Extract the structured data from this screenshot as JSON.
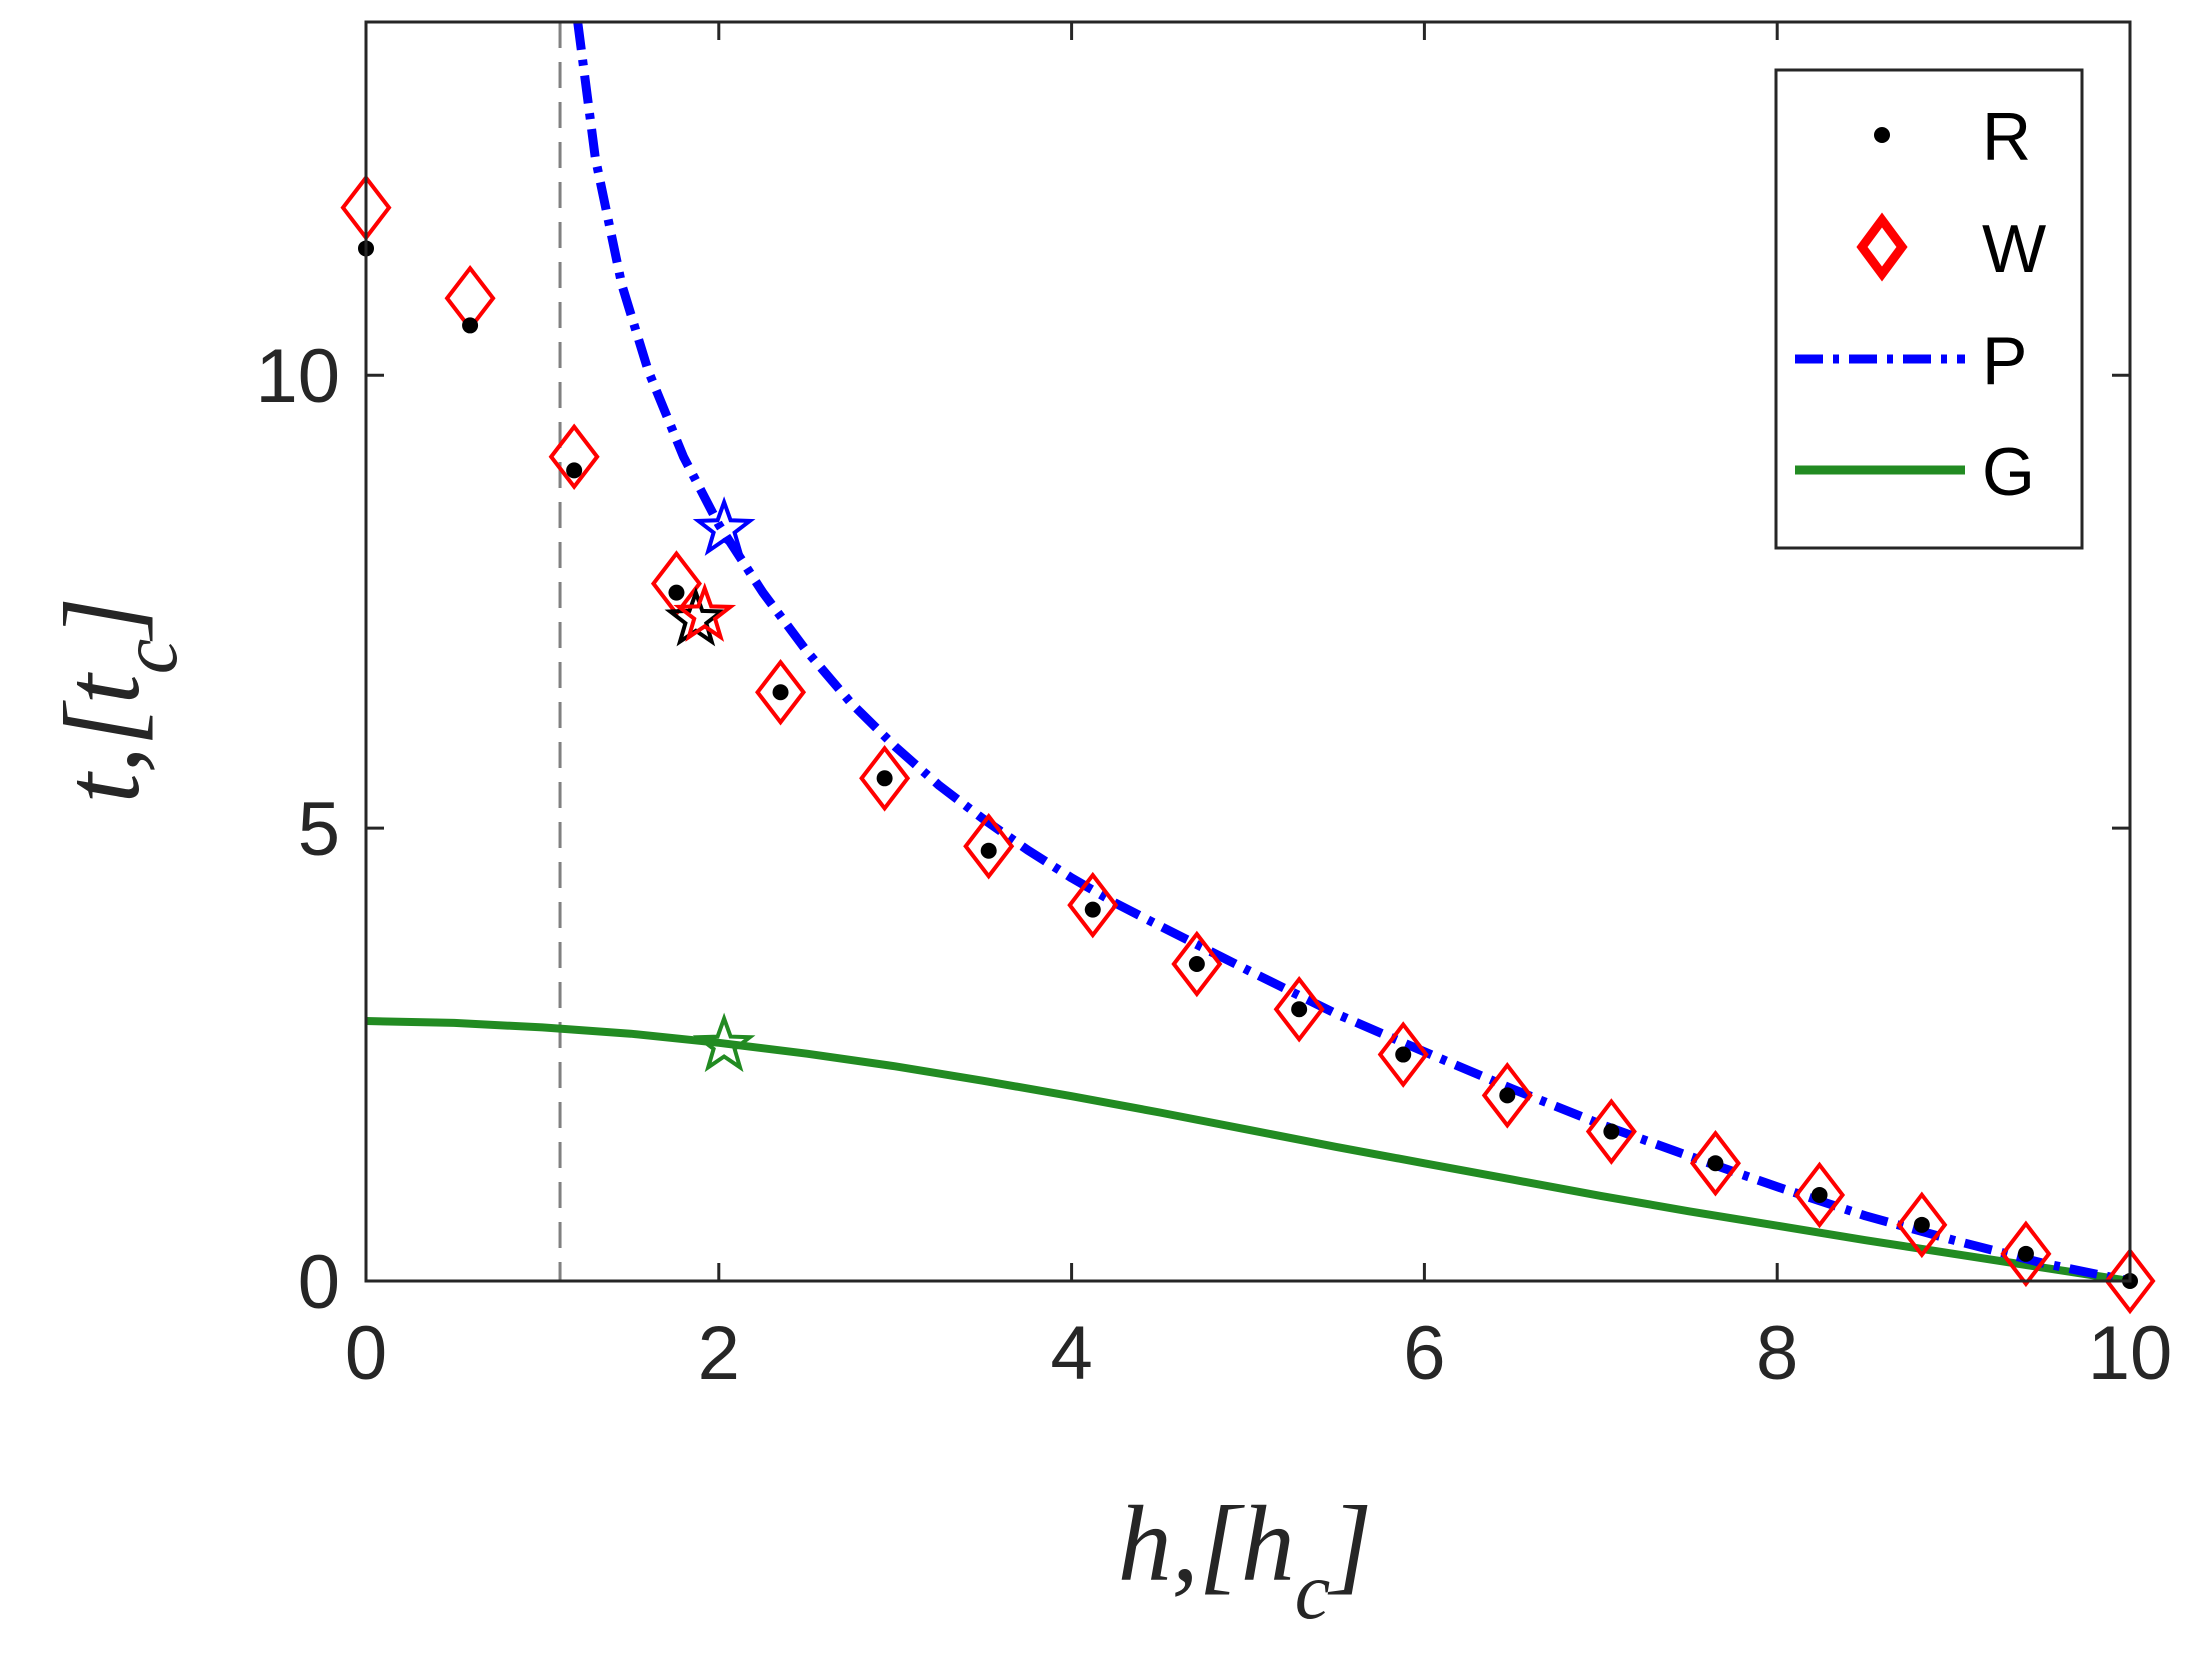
{
  "chart_data": {
    "type": "line",
    "title": "",
    "xlabel": {
      "main": "h,[h",
      "sub": "c",
      "close": "]"
    },
    "ylabel": {
      "main": "t,[t",
      "sub": "c",
      "close": "]"
    },
    "xlim": [
      0,
      10
    ],
    "ylim": [
      0,
      13.9
    ],
    "xticks": [
      "0",
      "2",
      "4",
      "6",
      "8",
      "10"
    ],
    "yticks": [
      "0",
      "5",
      "10"
    ],
    "xtick_values": [
      0,
      2,
      4,
      6,
      8,
      10
    ],
    "ytick_values": [
      0,
      5,
      10
    ],
    "grid": false,
    "legend_position": "top-right",
    "vertical_reference_line": {
      "x": 1.1,
      "style": "dashed",
      "color": "#808080"
    },
    "series": [
      {
        "name": "R",
        "kind": "markers",
        "marker": "dot",
        "color": "#000000",
        "x": [
          0.0,
          0.59,
          1.18,
          1.76,
          2.35,
          2.94,
          3.53,
          4.12,
          4.71,
          5.29,
          5.88,
          6.47,
          7.06,
          7.65,
          8.24,
          8.82,
          9.41,
          10.0
        ],
        "y": [
          11.4,
          10.55,
          8.95,
          7.6,
          6.5,
          5.55,
          4.75,
          4.1,
          3.5,
          3.0,
          2.5,
          2.05,
          1.65,
          1.3,
          0.95,
          0.62,
          0.3,
          0.0
        ]
      },
      {
        "name": "W",
        "kind": "markers",
        "marker": "diamond",
        "color": "#ff0000",
        "x": [
          0.0,
          0.59,
          1.18,
          1.76,
          2.35,
          2.94,
          3.53,
          4.12,
          4.71,
          5.29,
          5.88,
          6.47,
          7.06,
          7.65,
          8.24,
          8.82,
          9.41,
          10.0
        ],
        "y": [
          11.85,
          10.85,
          9.1,
          7.7,
          6.5,
          5.55,
          4.8,
          4.15,
          3.5,
          3.0,
          2.5,
          2.05,
          1.65,
          1.3,
          0.95,
          0.62,
          0.3,
          0.0
        ]
      },
      {
        "name": "P",
        "kind": "line",
        "style": "dashdot",
        "color": "#0000ff",
        "x": [
          1.2,
          1.3,
          1.45,
          1.6,
          1.8,
          2.0,
          2.25,
          2.5,
          2.75,
          3.0,
          3.25,
          3.5,
          3.75,
          4.0,
          4.25,
          4.5,
          5.0,
          5.5,
          6.0,
          6.5,
          7.0,
          7.5,
          8.0,
          8.5,
          9.0,
          9.5,
          10.0
        ],
        "y": [
          13.9,
          12.4,
          11.0,
          10.05,
          9.1,
          8.35,
          7.6,
          6.95,
          6.38,
          5.9,
          5.47,
          5.1,
          4.76,
          4.45,
          4.17,
          3.92,
          3.43,
          2.95,
          2.53,
          2.12,
          1.73,
          1.38,
          1.04,
          0.72,
          0.45,
          0.2,
          0.0
        ]
      },
      {
        "name": "G",
        "kind": "line",
        "style": "solid",
        "color": "#228b22",
        "x": [
          0.0,
          0.5,
          1.0,
          1.5,
          2.0,
          2.5,
          3.0,
          3.5,
          4.0,
          4.5,
          5.0,
          5.5,
          6.0,
          6.5,
          7.0,
          7.5,
          8.0,
          8.5,
          9.0,
          9.5,
          10.0
        ],
        "y": [
          2.87,
          2.85,
          2.8,
          2.73,
          2.63,
          2.51,
          2.37,
          2.21,
          2.04,
          1.86,
          1.67,
          1.48,
          1.3,
          1.12,
          0.94,
          0.77,
          0.61,
          0.45,
          0.3,
          0.15,
          0.0
        ]
      }
    ],
    "stars": [
      {
        "x": 2.03,
        "y": 8.3,
        "color": "#0000ff"
      },
      {
        "x": 1.87,
        "y": 7.3,
        "color": "#000000"
      },
      {
        "x": 1.92,
        "y": 7.35,
        "color": "#ff0000"
      },
      {
        "x": 2.03,
        "y": 2.6,
        "color": "#228b22"
      }
    ]
  }
}
